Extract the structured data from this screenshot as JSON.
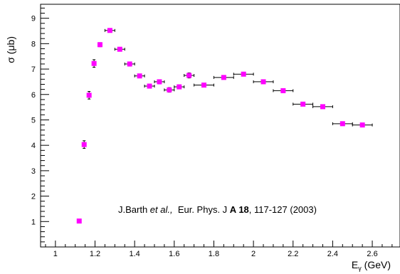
{
  "chart_data": {
    "type": "scatter",
    "title": "",
    "xlabel": {
      "main": "E",
      "sub": "γ",
      "unit": " (GeV)"
    },
    "ylabel": "σ (μb)",
    "xlim": [
      0.925,
      2.74
    ],
    "ylim": [
      0,
      9.55
    ],
    "x_ticks": [
      1,
      1.2,
      1.4,
      1.6,
      1.8,
      2,
      2.2,
      2.4,
      2.6
    ],
    "x_tick_labels": [
      "1",
      "1.2",
      "1.4",
      "1.6",
      "1.8",
      "2",
      "2.2",
      "2.4",
      "2.6"
    ],
    "y_ticks": [
      1,
      2,
      3,
      4,
      5,
      6,
      7,
      8,
      9
    ],
    "y_tick_labels": [
      "1",
      "2",
      "3",
      "4",
      "5",
      "6",
      "7",
      "8",
      "9"
    ],
    "grid": false,
    "marker_color": "#ff00ff",
    "series": [
      {
        "points": [
          {
            "x": 1.12,
            "y": 1.02,
            "xerr": 0.005,
            "yerr": 0.06
          },
          {
            "x": 1.145,
            "y": 4.03,
            "xerr": 0.0,
            "yerr": 0.15
          },
          {
            "x": 1.17,
            "y": 5.97,
            "xerr": 0.0,
            "yerr": 0.15
          },
          {
            "x": 1.195,
            "y": 7.22,
            "xerr": 0.0,
            "yerr": 0.15
          },
          {
            "x": 1.225,
            "y": 7.96,
            "xerr": 0.0,
            "yerr": 0.08
          },
          {
            "x": 1.275,
            "y": 8.52,
            "xerr": 0.025,
            "yerr": 0.07
          },
          {
            "x": 1.325,
            "y": 7.78,
            "xerr": 0.025,
            "yerr": 0.07
          },
          {
            "x": 1.375,
            "y": 7.2,
            "xerr": 0.025,
            "yerr": 0.08
          },
          {
            "x": 1.425,
            "y": 6.73,
            "xerr": 0.025,
            "yerr": 0.07
          },
          {
            "x": 1.475,
            "y": 6.33,
            "xerr": 0.025,
            "yerr": 0.08
          },
          {
            "x": 1.525,
            "y": 6.5,
            "xerr": 0.025,
            "yerr": 0.08
          },
          {
            "x": 1.575,
            "y": 6.18,
            "xerr": 0.025,
            "yerr": 0.09
          },
          {
            "x": 1.625,
            "y": 6.3,
            "xerr": 0.025,
            "yerr": 0.08
          },
          {
            "x": 1.675,
            "y": 6.75,
            "xerr": 0.025,
            "yerr": 0.1
          },
          {
            "x": 1.75,
            "y": 6.37,
            "xerr": 0.05,
            "yerr": 0.06
          },
          {
            "x": 1.85,
            "y": 6.67,
            "xerr": 0.05,
            "yerr": 0.06
          },
          {
            "x": 1.95,
            "y": 6.8,
            "xerr": 0.05,
            "yerr": 0.06
          },
          {
            "x": 2.05,
            "y": 6.5,
            "xerr": 0.05,
            "yerr": 0.06
          },
          {
            "x": 2.15,
            "y": 6.15,
            "xerr": 0.05,
            "yerr": 0.06
          },
          {
            "x": 2.25,
            "y": 5.62,
            "xerr": 0.05,
            "yerr": 0.06
          },
          {
            "x": 2.35,
            "y": 5.52,
            "xerr": 0.05,
            "yerr": 0.06
          },
          {
            "x": 2.45,
            "y": 4.85,
            "xerr": 0.05,
            "yerr": 0.06
          },
          {
            "x": 2.55,
            "y": 4.8,
            "xerr": 0.05,
            "yerr": 0.06
          }
        ]
      }
    ],
    "annotation": {
      "author": "J.Barth ",
      "etal": "et al.,",
      "journal": "  Eur. Phys. J ",
      "volume": "A 18",
      "pages": ", 117-127 (2003)"
    }
  }
}
